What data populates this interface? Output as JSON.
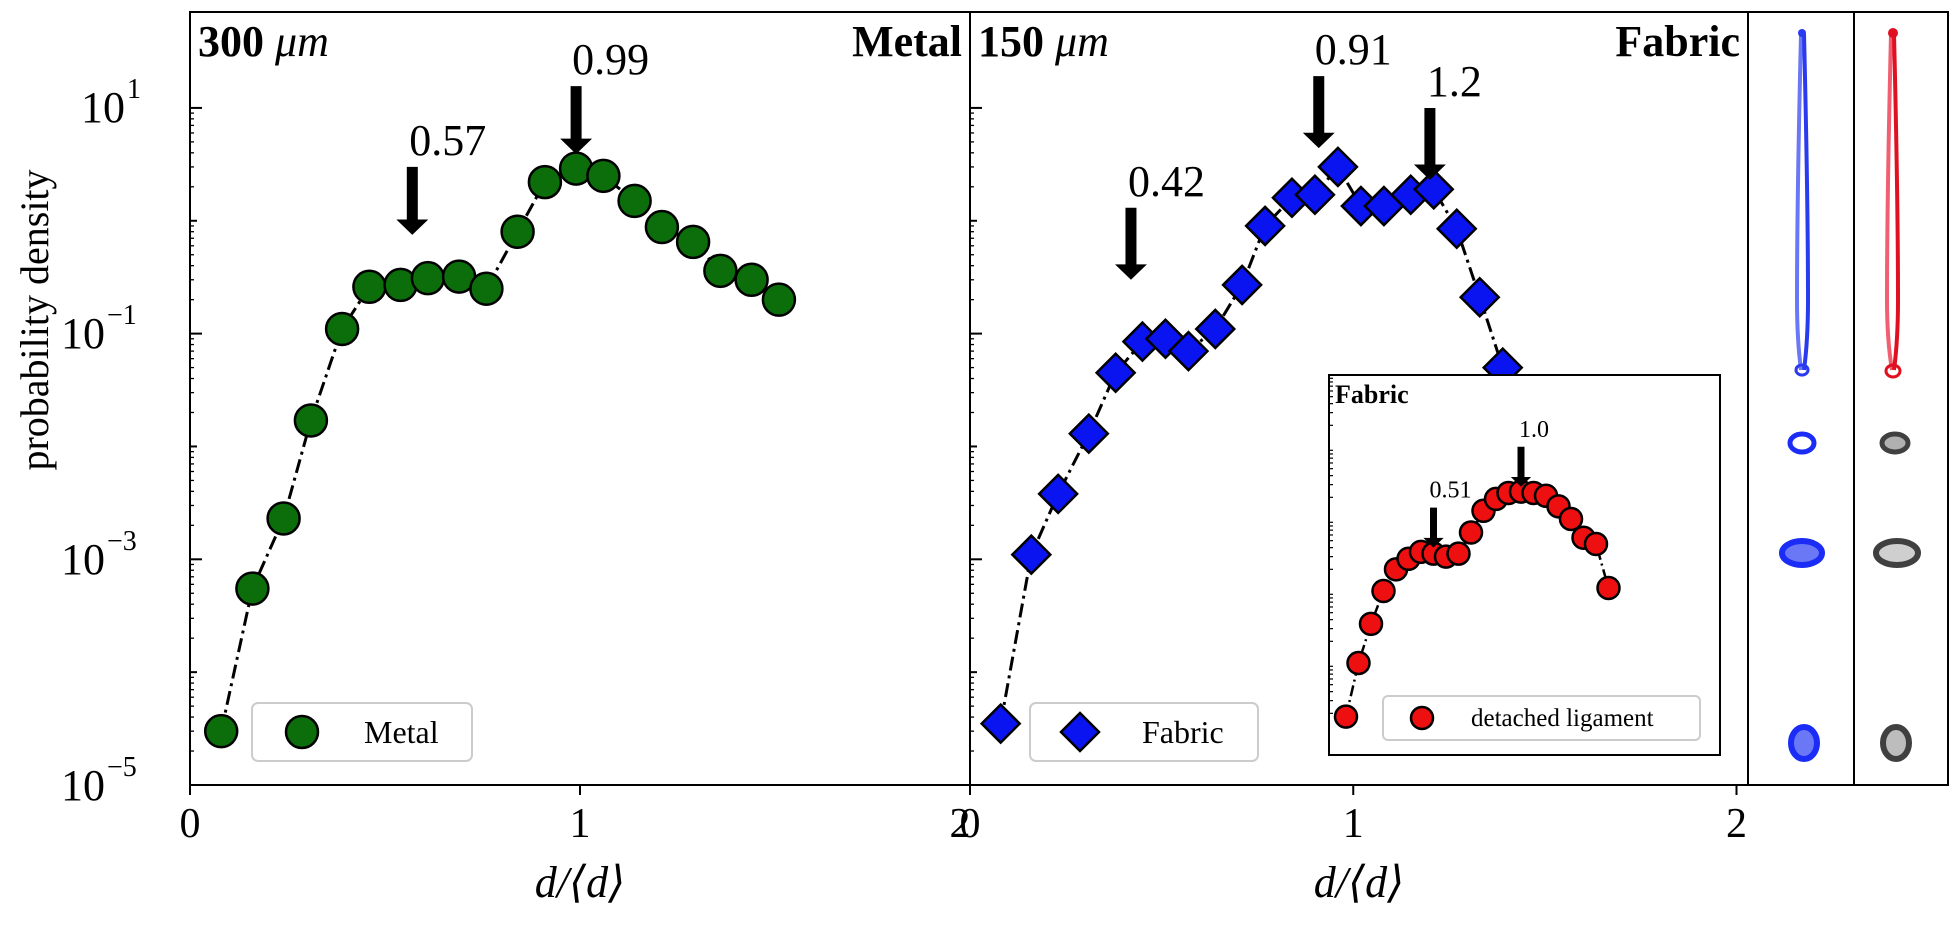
{
  "figure": {
    "ylabel": "probability density",
    "ytick_labels": [
      "10",
      "−1",
      "−3",
      "−5"
    ],
    "ytick_base": "10",
    "ytick_exps": [
      "1",
      "−1",
      "−3",
      "−5"
    ]
  },
  "chart_data": [
    {
      "type": "scatter",
      "panel": "left",
      "corner_label_left": "300 μm",
      "corner_label_left_num": "300",
      "corner_label_left_unit": "μm",
      "corner_label_right": "Metal",
      "xlabel": "d/⟨d⟩",
      "xlim": [
        0,
        2
      ],
      "ylim_log10": [
        -5,
        1.85
      ],
      "yscale": "log",
      "xtick_labels": [
        "0",
        "1",
        "2"
      ],
      "series": [
        {
          "name": "Metal",
          "color": "#0b6e0b",
          "marker": "circle",
          "x": [
            0.08,
            0.16,
            0.24,
            0.31,
            0.39,
            0.46,
            0.54,
            0.61,
            0.69,
            0.76,
            0.84,
            0.91,
            0.99,
            1.06,
            1.14,
            1.21,
            1.29,
            1.36,
            1.44,
            1.51
          ],
          "y": [
            3e-05,
            0.00055,
            0.0023,
            0.017,
            0.11,
            0.26,
            0.27,
            0.31,
            0.32,
            0.25,
            0.8,
            2.2,
            2.9,
            2.5,
            1.5,
            0.88,
            0.65,
            0.36,
            0.3,
            0.2
          ]
        }
      ],
      "annotations": [
        {
          "text": "0.57",
          "x": 0.57,
          "y_tip": 0.75
        },
        {
          "text": "0.99",
          "x": 0.99,
          "y_tip": 3.9
        }
      ],
      "legend": {
        "position": "bottom-left"
      }
    },
    {
      "type": "scatter",
      "panel": "middle",
      "corner_label_left": "150 μm",
      "corner_label_left_num": "150",
      "corner_label_left_unit": "μm",
      "corner_label_right": "Fabric",
      "xlabel": "d/⟨d⟩",
      "xlim": [
        0,
        2.03
      ],
      "ylim_log10": [
        -5,
        1.85
      ],
      "yscale": "log",
      "xtick_labels": [
        "0",
        "1",
        "2"
      ],
      "series": [
        {
          "name": "Fabric",
          "color": "#0a14f0",
          "marker": "diamond",
          "x": [
            0.08,
            0.16,
            0.23,
            0.31,
            0.38,
            0.45,
            0.51,
            0.57,
            0.64,
            0.71,
            0.77,
            0.84,
            0.9,
            0.96,
            1.02,
            1.08,
            1.15,
            1.21,
            1.27,
            1.33,
            1.39,
            1.46
          ],
          "y": [
            3.5e-05,
            0.0011,
            0.0038,
            0.013,
            0.045,
            0.085,
            0.09,
            0.07,
            0.11,
            0.27,
            0.9,
            1.6,
            1.7,
            3.0,
            1.35,
            1.35,
            1.7,
            1.9,
            0.85,
            0.21,
            0.05,
            0.01
          ]
        }
      ],
      "annotations": [
        {
          "text": "0.42",
          "x": 0.42,
          "y_tip": 0.3
        },
        {
          "text": "0.91",
          "x": 0.91,
          "y_tip": 4.4
        },
        {
          "text": "1.2",
          "x": 1.2,
          "y_tip": 2.3
        }
      ],
      "legend": {
        "position": "bottom-left"
      }
    },
    {
      "type": "scatter",
      "panel": "inset",
      "corner_label_left": "Fabric",
      "yscale": "log",
      "series": [
        {
          "name": "detached ligament",
          "color": "#ee1010",
          "marker": "circle",
          "x": [
            0.06,
            0.11,
            0.16,
            0.21,
            0.26,
            0.31,
            0.36,
            0.41,
            0.46,
            0.51,
            0.56,
            0.61,
            0.66,
            0.71,
            0.76,
            0.81,
            0.86,
            0.91,
            0.96,
            1.01,
            1.06,
            1.11
          ],
          "y": [
            1.8e-05,
            0.0001,
            0.00035,
            0.001,
            0.002,
            0.0028,
            0.0035,
            0.0033,
            0.003,
            0.0033,
            0.0065,
            0.013,
            0.019,
            0.023,
            0.024,
            0.023,
            0.021,
            0.015,
            0.01,
            0.0055,
            0.0045,
            0.0011
          ]
        }
      ],
      "annotations": [
        {
          "text": "0.51",
          "x": 0.41,
          "y_tip": 0.004
        },
        {
          "text": "1.0",
          "x": 0.76,
          "y_tip": 0.028
        }
      ],
      "legend": {
        "position": "bottom-right"
      }
    }
  ],
  "photos": [
    {
      "name": "blue-droplet-strip",
      "color": "#1a2cf5"
    },
    {
      "name": "red-gray-droplet-strip",
      "color_ligament": "#f01020",
      "color_droplet": "#505050"
    }
  ]
}
